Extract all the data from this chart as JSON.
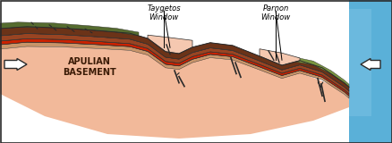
{
  "label_taygetos": "Taygetos\nWindow",
  "label_parnon": "Parnon\nWindow",
  "label_basement": "APULIAN\nBASEMENT",
  "salmon": "#f2b99a",
  "salmon_light": "#f5c8b0",
  "dark_brown": "#6b3318",
  "med_brown": "#994422",
  "orange_brown": "#c86428",
  "red_color": "#cc2200",
  "green_dark": "#556b2f",
  "green_light": "#7a9640",
  "blue_sea": "#5ab0d8",
  "blue_light": "#85c8e8",
  "white": "#ffffff",
  "outline": "#2a2a2a",
  "tan": "#c8956a"
}
